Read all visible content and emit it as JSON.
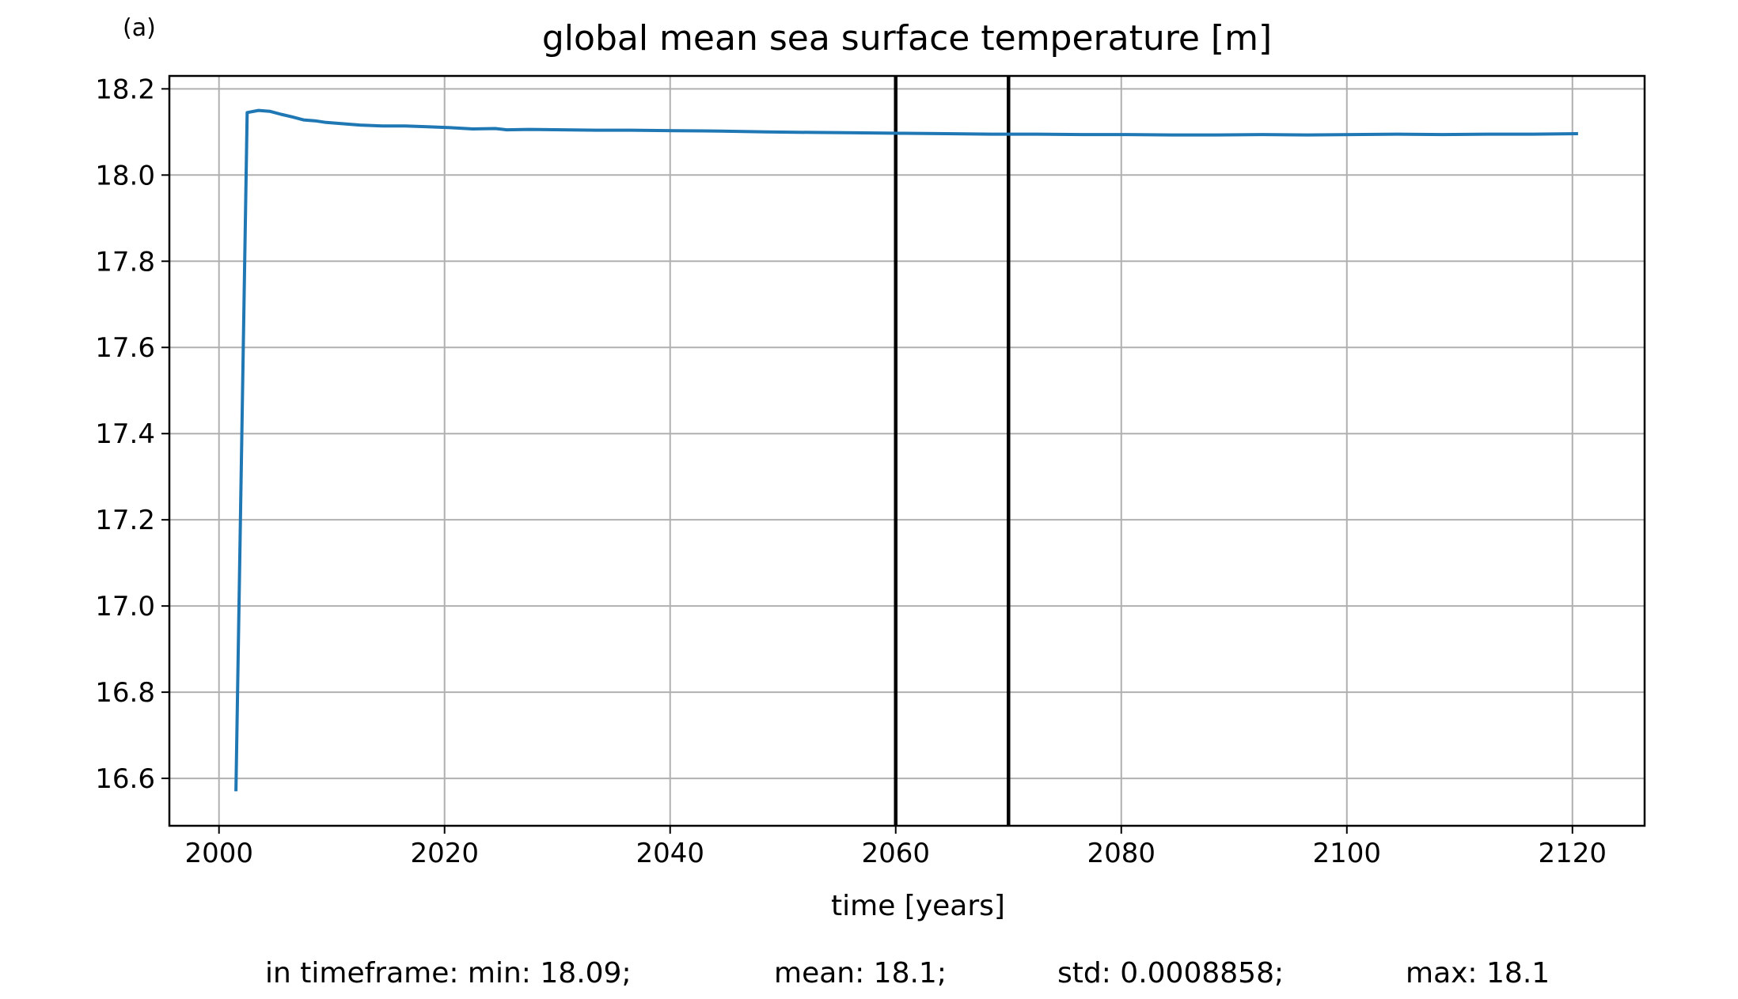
{
  "panel_label": "(a)",
  "stats": {
    "min": "in timeframe: min: 18.09;",
    "mean": "mean: 18.1;",
    "std": "std: 0.0008858;",
    "max": "max: 18.1"
  },
  "chart_data": {
    "type": "line",
    "title": "global mean sea surface temperature [m]",
    "xlabel": "time [years]",
    "ylabel": "",
    "xlim": [
      1995.6,
      2126.4
    ],
    "ylim": [
      16.49,
      18.23
    ],
    "xticks": [
      2000,
      2020,
      2040,
      2060,
      2080,
      2100,
      2120
    ],
    "yticks": [
      16.6,
      16.8,
      17.0,
      17.2,
      17.4,
      17.6,
      17.8,
      18.0,
      18.2
    ],
    "ytick_labels": [
      "16.6",
      "16.8",
      "17.0",
      "17.2",
      "17.4",
      "17.6",
      "17.8",
      "18.0",
      "18.2"
    ],
    "grid": true,
    "line_color": "#1f77b4",
    "vlines": [
      2060,
      2070
    ],
    "vline_color": "#000000",
    "series": [
      {
        "x": [
          2001.5,
          2002.5,
          2003.5,
          2004.5,
          2005.5,
          2006.5,
          2007.5,
          2008.5,
          2009.5,
          2010.5,
          2012.5,
          2014.5,
          2016.5,
          2018.5,
          2020.5,
          2022.5,
          2024.5,
          2025.5,
          2027.5,
          2030.5,
          2033.5,
          2036.5,
          2040.5,
          2044.5,
          2048.5,
          2052.5,
          2056.5,
          2060.5,
          2064.5,
          2068.5,
          2072.5,
          2076.5,
          2080.5,
          2084.5,
          2088.5,
          2092.5,
          2096.5,
          2100.5,
          2104.5,
          2108.5,
          2112.5,
          2116.5,
          2120.5
        ],
        "y": [
          16.57,
          18.145,
          18.15,
          18.148,
          18.141,
          18.135,
          18.128,
          18.126,
          18.122,
          18.12,
          18.116,
          18.114,
          18.114,
          18.112,
          18.11,
          18.107,
          18.108,
          18.105,
          18.106,
          18.105,
          18.104,
          18.104,
          18.103,
          18.102,
          18.1,
          18.099,
          18.098,
          18.097,
          18.096,
          18.095,
          18.095,
          18.094,
          18.094,
          18.093,
          18.093,
          18.094,
          18.093,
          18.094,
          18.095,
          18.094,
          18.095,
          18.095,
          18.096
        ]
      }
    ]
  }
}
